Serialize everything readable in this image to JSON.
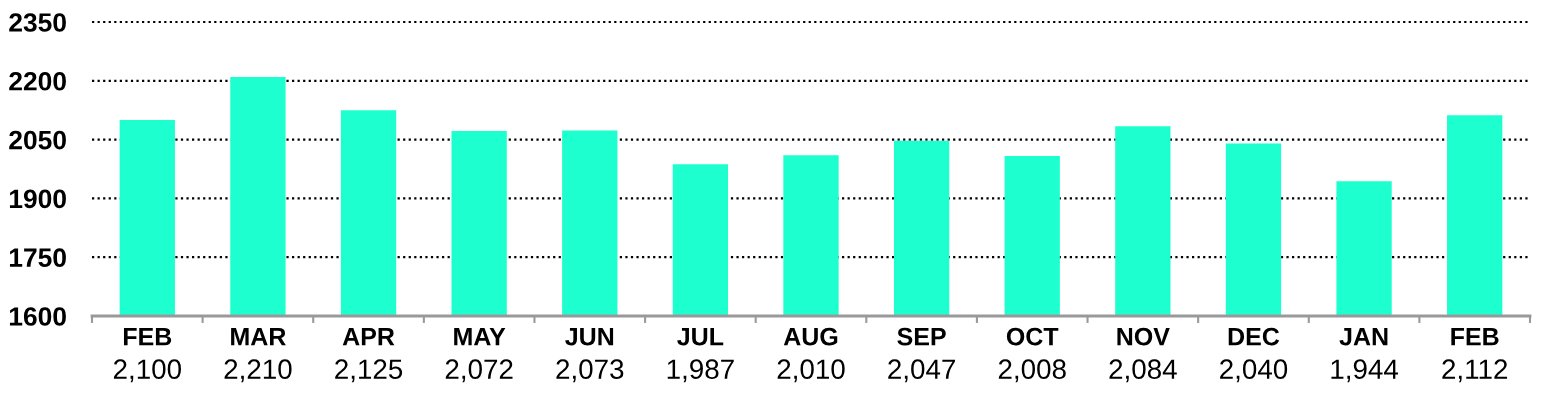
{
  "chart_data": {
    "type": "bar",
    "categories": [
      "FEB",
      "MAR",
      "APR",
      "MAY",
      "JUN",
      "JUL",
      "AUG",
      "SEP",
      "OCT",
      "NOV",
      "DEC",
      "JAN",
      "FEB"
    ],
    "values": [
      2100,
      2210,
      2125,
      2072,
      2073,
      1987,
      2010,
      2047,
      2008,
      2084,
      2040,
      1944,
      2112
    ],
    "value_labels": [
      "2,100",
      "2,210",
      "2,125",
      "2,072",
      "2,073",
      "1,987",
      "2,010",
      "2,047",
      "2,008",
      "2,084",
      "2,040",
      "1,944",
      "2,112"
    ],
    "color": "#1effcf",
    "ylim": [
      1600,
      2350
    ],
    "yticks": [
      1600,
      1750,
      1900,
      2050,
      2200,
      2350
    ],
    "grid": "y"
  }
}
